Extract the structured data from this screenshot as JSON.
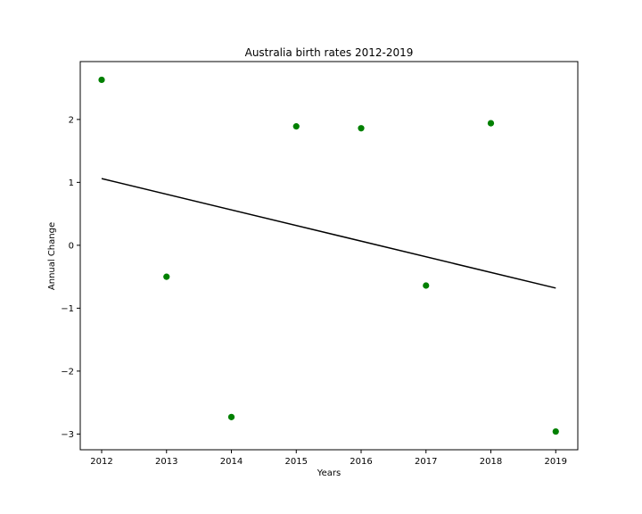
{
  "chart_data": {
    "type": "scatter",
    "title": "Australia birth rates 2012-2019",
    "xlabel": "Years",
    "ylabel": "Annual Change",
    "x": [
      2012,
      2013,
      2014,
      2015,
      2016,
      2017,
      2018,
      2019
    ],
    "y": [
      2.63,
      -0.5,
      -2.73,
      1.89,
      1.86,
      -0.64,
      1.94,
      -2.96
    ],
    "xlim": [
      2011.67,
      2019.34
    ],
    "ylim": [
      -3.25,
      2.92
    ],
    "xticks": [
      2012,
      2013,
      2014,
      2015,
      2016,
      2017,
      2018,
      2019
    ],
    "yticks": [
      -3,
      -2,
      -1,
      0,
      1,
      2
    ],
    "ytick_labels": [
      "−3",
      "−2",
      "−1",
      "0",
      "1",
      "2"
    ],
    "point_color": "#008000",
    "trendline": {
      "x": [
        2012,
        2019
      ],
      "y": [
        1.06,
        -0.68
      ],
      "color": "#000000"
    },
    "grid": false
  }
}
